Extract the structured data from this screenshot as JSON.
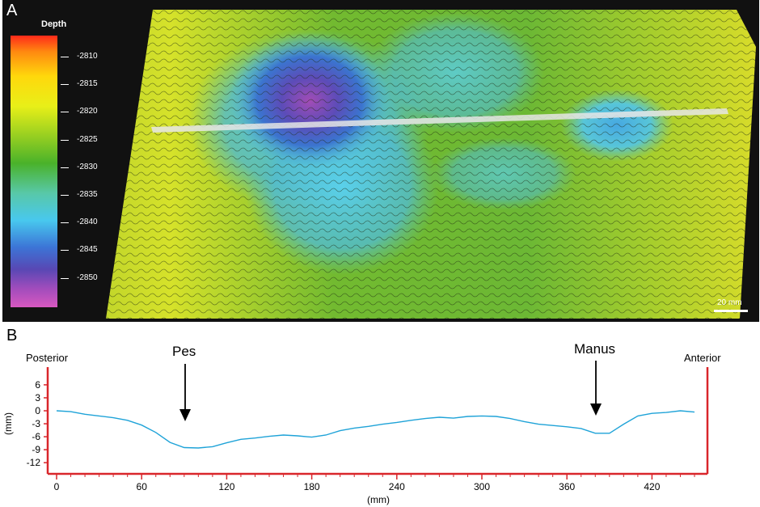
{
  "panel_a": {
    "letter": "A",
    "legend_title": "Depth",
    "legend_ticks": [
      "-2810",
      "-2815",
      "-2820",
      "-2825",
      "-2830",
      "-2835",
      "-2840",
      "-2845",
      "-2850"
    ],
    "scale_bar": "20 mm"
  },
  "panel_b": {
    "letter": "B",
    "posterior": "Posterior",
    "anterior": "Anterior",
    "pes_label": "Pes",
    "manus_label": "Manus"
  },
  "chart_data": {
    "type": "line",
    "xlabel": "(mm)",
    "ylabel": "(mm)",
    "xlim": [
      0,
      450
    ],
    "ylim": [
      -12,
      6
    ],
    "x_ticks": [
      0,
      60,
      120,
      180,
      240,
      300,
      360,
      420
    ],
    "y_ticks": [
      6,
      3,
      0,
      -3,
      -6,
      -9,
      -12
    ],
    "colors": {
      "line": "#1fa3d8",
      "axis": "#d9262b"
    },
    "series": [
      {
        "x": [
          0,
          10,
          20,
          30,
          40,
          50,
          60,
          70,
          80,
          90,
          100,
          110,
          120,
          130,
          140,
          150,
          160,
          170,
          180,
          190,
          200,
          210,
          220,
          230,
          240,
          250,
          260,
          270,
          280,
          290,
          300,
          310,
          320,
          330,
          340,
          350,
          360,
          370,
          380,
          390,
          400,
          410,
          420,
          430,
          440,
          450
        ],
        "values": [
          0,
          -0.2,
          -0.8,
          -1.2,
          -1.6,
          -2.2,
          -3.3,
          -5.0,
          -7.3,
          -8.5,
          -8.6,
          -8.3,
          -7.4,
          -6.6,
          -6.3,
          -5.9,
          -5.6,
          -5.8,
          -6.1,
          -5.6,
          -4.6,
          -4.0,
          -3.6,
          -3.1,
          -2.7,
          -2.2,
          -1.8,
          -1.5,
          -1.7,
          -1.3,
          -1.2,
          -1.3,
          -1.8,
          -2.5,
          -3.1,
          -3.4,
          -3.7,
          -4.1,
          -5.2,
          -5.2,
          -3.1,
          -1.2,
          -0.6,
          -0.4,
          0,
          -0.3
        ]
      }
    ]
  }
}
